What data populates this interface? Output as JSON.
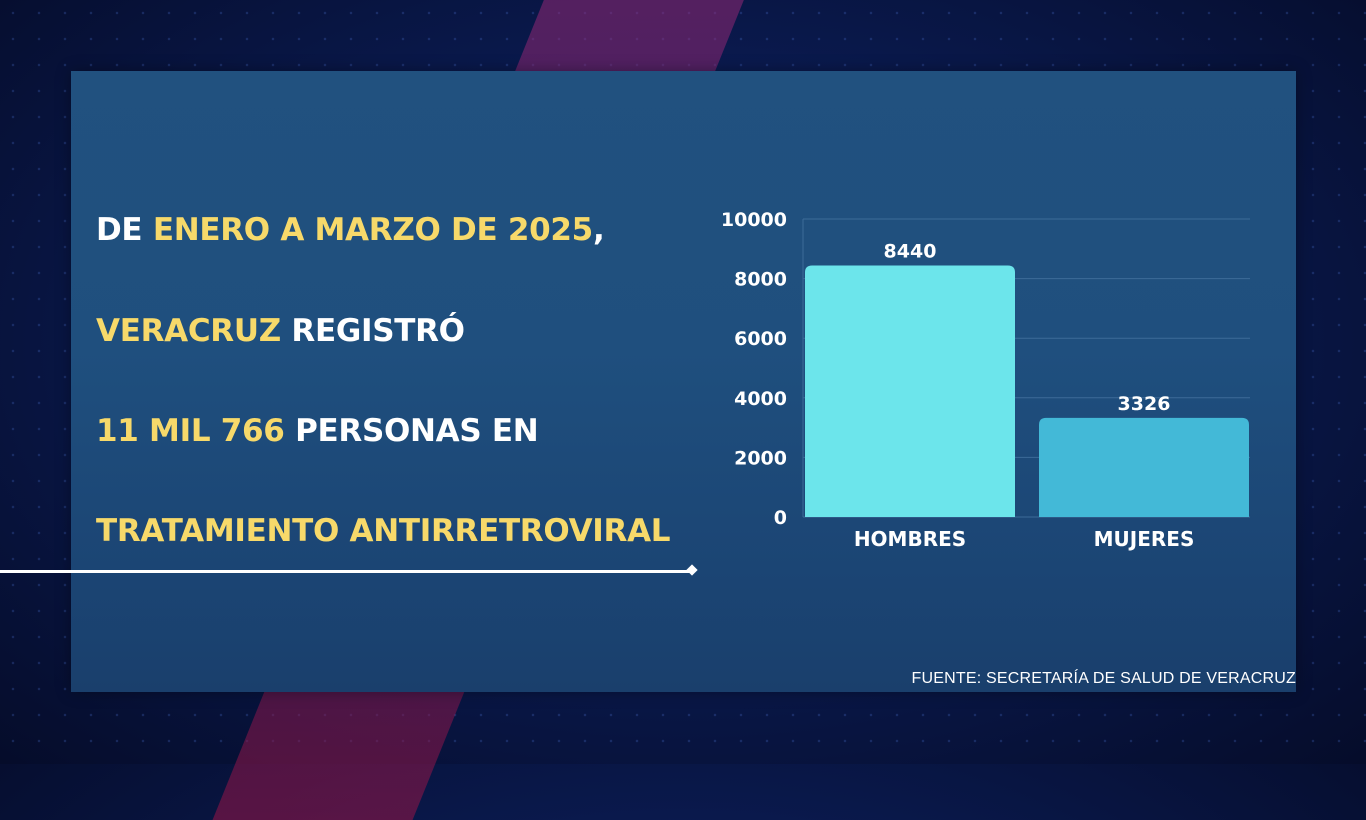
{
  "headline": {
    "line1": [
      {
        "text": "DE ",
        "color": "white"
      },
      {
        "text": "ENERO A MARZO DE 2025",
        "color": "yellow"
      },
      {
        "text": ",",
        "color": "white"
      }
    ],
    "line2": [
      {
        "text": "VERACRUZ",
        "color": "yellow"
      },
      {
        "text": " REGISTRÓ",
        "color": "white"
      }
    ],
    "line3": [
      {
        "text": "11 MIL 766",
        "color": "yellow"
      },
      {
        "text": " PERSONAS EN",
        "color": "white"
      }
    ],
    "line4": [
      {
        "text": "TRATAMIENTO ANTIRRETROVIRAL",
        "color": "yellow"
      }
    ]
  },
  "colors": {
    "white": "#ffffff",
    "yellow": "#f7d96a",
    "bar_hombres": "#6ce5eb",
    "bar_mujeres": "#43b9d7",
    "gridline": "#3d6b98"
  },
  "chart_data": {
    "type": "bar",
    "categories": [
      "HOMBRES",
      "MUJERES"
    ],
    "values": [
      8440,
      3326
    ],
    "data_labels": [
      "8440",
      "3326"
    ],
    "yticks": [
      0,
      2000,
      4000,
      6000,
      8000,
      10000
    ],
    "ylim": [
      0,
      10000
    ],
    "grid": true,
    "title": "",
    "xlabel": "",
    "ylabel": ""
  },
  "source": "FUENTE: SECRETARÍA DE SALUD DE VERACRUZ"
}
